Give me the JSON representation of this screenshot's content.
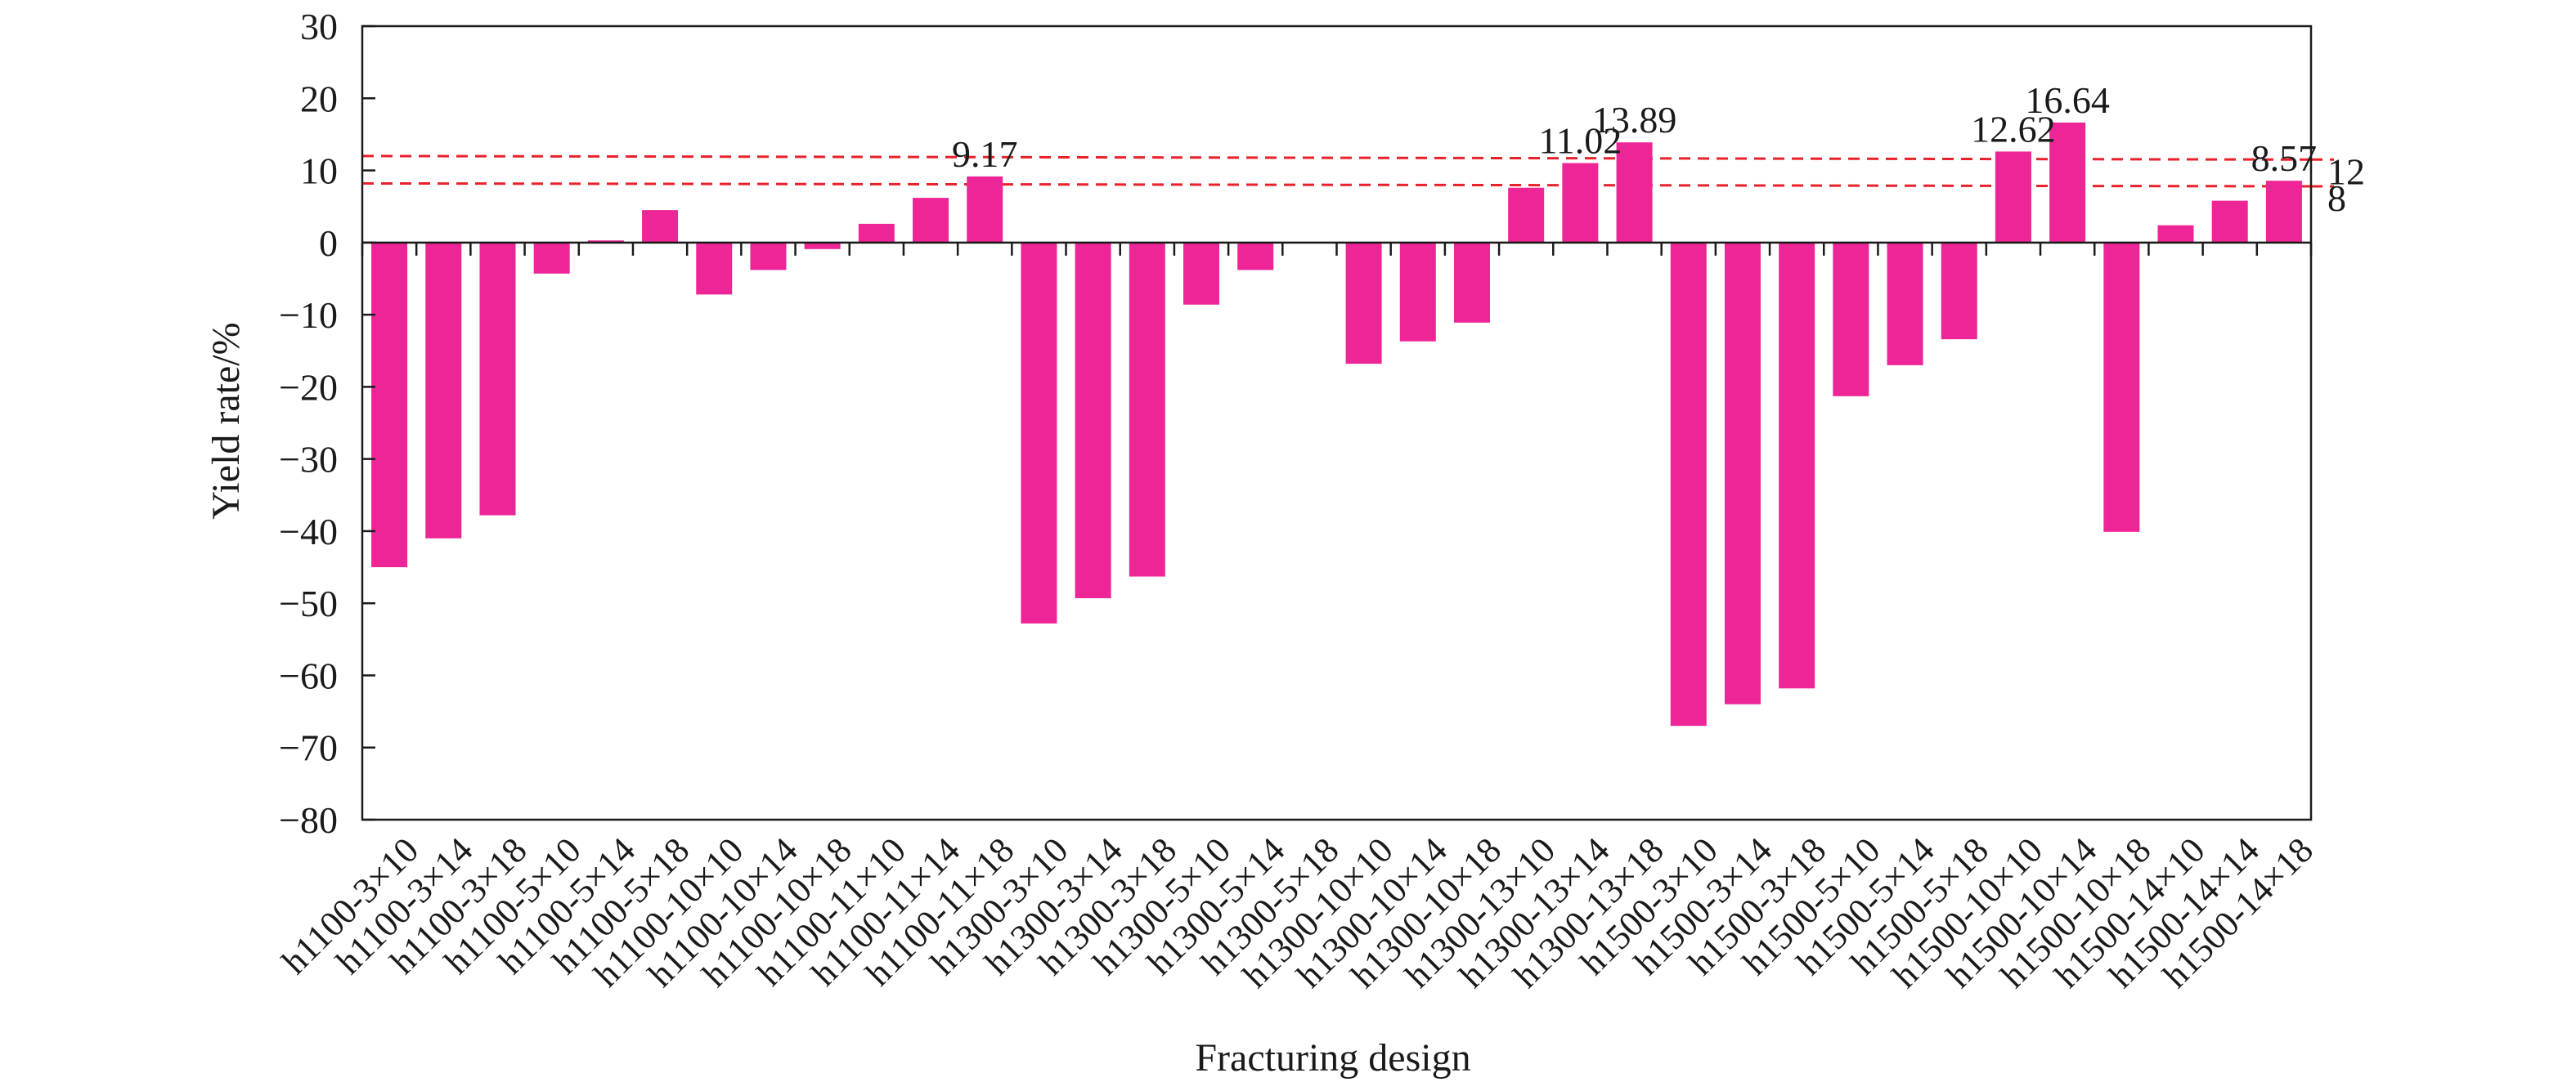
{
  "chart_data": {
    "type": "bar",
    "title": "",
    "xlabel": "Fracturing design",
    "ylabel": "Yield rate/%",
    "ylim": [
      -80,
      30
    ],
    "yticks": [
      30,
      20,
      10,
      0,
      -10,
      -20,
      -30,
      -40,
      -50,
      -60,
      -70,
      -80
    ],
    "grid": false,
    "legend": "none",
    "bar_color": "#EE2597",
    "reference_line_color": "#E8212B",
    "categories": [
      "h1100-3×10",
      "h1100-3×14",
      "h1100-3×18",
      "h1100-5×10",
      "h1100-5×14",
      "h1100-5×18",
      "h1100-10×10",
      "h1100-10×14",
      "h1100-10×18",
      "h1100-11×10",
      "h1100-11×14",
      "h1100-11×18",
      "h1300-3×10",
      "h1300-3×14",
      "h1300-3×18",
      "h1300-5×10",
      "h1300-5×14",
      "h1300-5×18",
      "h1300-10×10",
      "h1300-10×14",
      "h1300-10×18",
      "h1300-13×10",
      "h1300-13×14",
      "h1300-13×18",
      "h1500-3×10",
      "h1500-3×14",
      "h1500-3×18",
      "h1500-5×10",
      "h1500-5×14",
      "h1500-5×18",
      "h1500-10×10",
      "h1500-10×14",
      "h1500-10×18",
      "h1500-14×10",
      "h1500-14×14",
      "h1500-14×18"
    ],
    "values": [
      -45,
      -41,
      -37.8,
      -4.3,
      0.3,
      4.5,
      -7.2,
      -3.8,
      -0.9,
      2.6,
      6.2,
      9.17,
      -52.8,
      -49.3,
      -46.3,
      -8.6,
      -3.8,
      0,
      -16.8,
      -13.7,
      -11.1,
      7.6,
      11.02,
      13.89,
      -67,
      -64,
      -61.8,
      -21.3,
      -17,
      -13.4,
      12.62,
      16.64,
      -40.1,
      2.4,
      5.8,
      8.57
    ],
    "data_labels": [
      {
        "index": 11,
        "text": "9.17"
      },
      {
        "index": 22,
        "text": "11.02"
      },
      {
        "index": 23,
        "text": "13.89"
      },
      {
        "index": 30,
        "text": "12.62"
      },
      {
        "index": 31,
        "text": "16.64"
      },
      {
        "index": 35,
        "text": "8.57"
      }
    ],
    "reference_lines": [
      {
        "label": "12",
        "start": 12.0,
        "end": 11.5
      },
      {
        "label": "8",
        "start": 8.2,
        "end": 7.8
      }
    ]
  }
}
